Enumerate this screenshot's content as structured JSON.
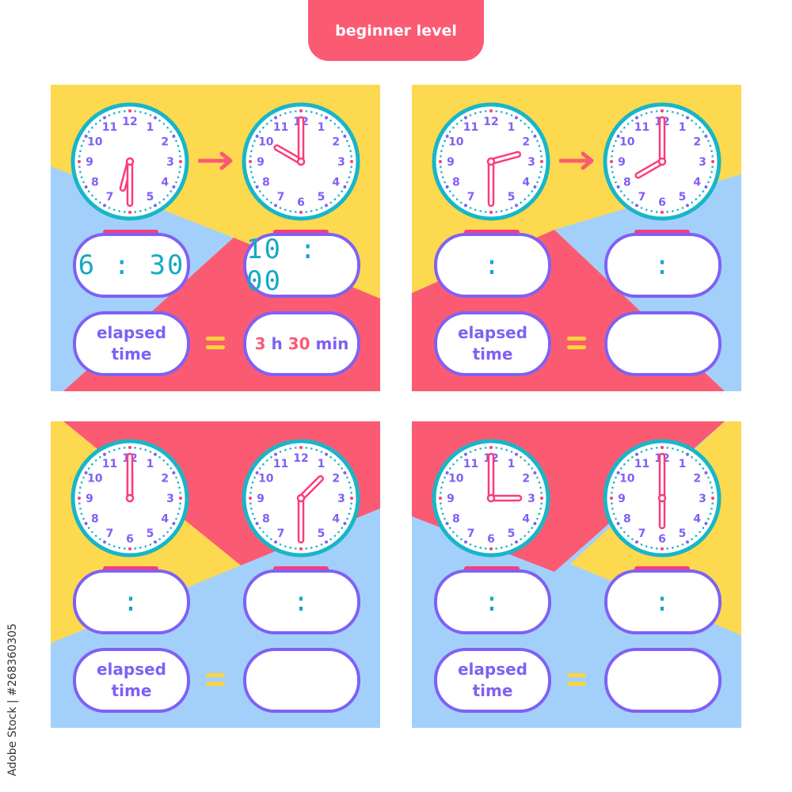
{
  "header": {
    "label": "beginner level"
  },
  "colors": {
    "yellow": "#fcd94f",
    "blue": "#a3d0fb",
    "red": "#fb5a73",
    "purple": "#7f60f5",
    "teal": "#17b6c8",
    "pink": "#fb3d78"
  },
  "panels": [
    {
      "start": {
        "hour": 6,
        "minute": 30
      },
      "end": {
        "hour": 10,
        "minute": 0
      },
      "start_display": "6 : 30",
      "end_display": "10 : 00",
      "elapsed_label": "elapsed time",
      "answer": {
        "h": "3",
        "h_unit": "h",
        "min": "30",
        "min_unit": "min"
      }
    },
    {
      "start": {
        "hour": 2,
        "minute": 30
      },
      "end": {
        "hour": 8,
        "minute": 0
      },
      "start_display": ":",
      "end_display": ":",
      "elapsed_label": "elapsed time",
      "answer": null
    },
    {
      "start": {
        "hour": 12,
        "minute": 0
      },
      "end": {
        "hour": 1,
        "minute": 30
      },
      "start_display": ":",
      "end_display": ":",
      "elapsed_label": "elapsed time",
      "answer": null
    },
    {
      "start": {
        "hour": 3,
        "minute": 0
      },
      "end": {
        "hour": 6,
        "minute": 0
      },
      "start_display": ":",
      "end_display": ":",
      "elapsed_label": "elapsed time",
      "answer": null
    }
  ],
  "watermark": "Adobe Stock | #268360305"
}
